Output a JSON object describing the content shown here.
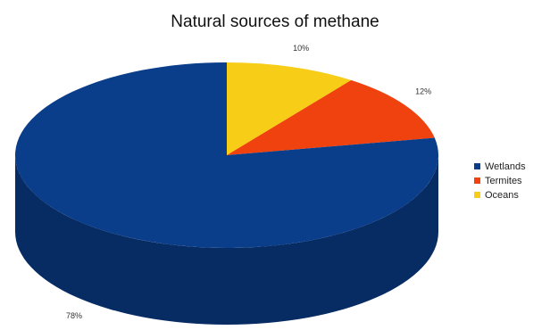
{
  "chart_data": {
    "type": "pie",
    "title": "Natural sources of methane",
    "three_d": true,
    "legend_position": "right",
    "slices": [
      {
        "name": "Wetlands",
        "value": 78,
        "label": "78%",
        "color": "#0a3d8a"
      },
      {
        "name": "Termites",
        "value": 12,
        "label": "12%",
        "color": "#f0420e"
      },
      {
        "name": "Oceans",
        "value": 10,
        "label": "10%",
        "color": "#f7cd17"
      }
    ]
  }
}
